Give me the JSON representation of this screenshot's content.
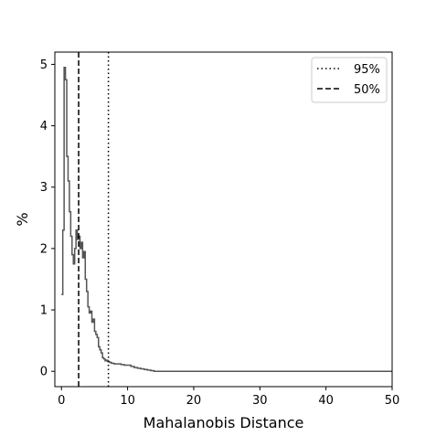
{
  "chart_data": {
    "type": "line",
    "title": "",
    "xlabel": "Mahalanobis Distance",
    "ylabel": "%",
    "xlim": [
      -1,
      50
    ],
    "ylim": [
      -0.25,
      5.2
    ],
    "x_ticks": [
      0,
      10,
      20,
      30,
      40,
      50
    ],
    "y_ticks": [
      0,
      1,
      2,
      3,
      4,
      5
    ],
    "grid": false,
    "legend_position": "top-right",
    "series": [
      {
        "style": "step",
        "color": "#555555",
        "x": [
          0.0,
          0.2,
          0.4,
          0.6,
          0.8,
          1.0,
          1.2,
          1.4,
          1.6,
          1.8,
          2.0,
          2.2,
          2.4,
          2.6,
          2.8,
          3.0,
          3.2,
          3.4,
          3.6,
          3.8,
          4.0,
          4.2,
          4.4,
          4.6,
          4.8,
          5.0,
          5.2,
          5.4,
          5.6,
          5.8,
          6.0,
          6.2,
          6.4,
          6.6,
          6.8,
          7.0,
          7.2,
          7.4,
          7.6,
          7.8,
          8.0,
          8.5,
          9.0,
          9.5,
          10.0,
          10.5,
          11.0,
          11.5,
          12.0,
          12.5,
          13.0,
          13.5,
          14.0,
          15.0,
          20.0,
          30.0,
          40.0,
          50.0
        ],
        "y": [
          1.25,
          2.3,
          4.95,
          4.75,
          3.5,
          3.1,
          2.6,
          2.2,
          1.9,
          1.75,
          2.0,
          2.3,
          2.15,
          2.2,
          2.0,
          2.1,
          1.85,
          1.95,
          1.5,
          1.3,
          1.05,
          0.95,
          0.98,
          0.8,
          0.85,
          0.65,
          0.6,
          0.55,
          0.4,
          0.35,
          0.3,
          0.22,
          0.2,
          0.17,
          0.18,
          0.16,
          0.15,
          0.14,
          0.13,
          0.13,
          0.12,
          0.12,
          0.11,
          0.1,
          0.1,
          0.08,
          0.06,
          0.05,
          0.04,
          0.03,
          0.02,
          0.01,
          0.0,
          0.0,
          0.0,
          0.0,
          0.0,
          0.0
        ]
      }
    ],
    "vlines": [
      {
        "x": 7.1,
        "style": "dotted",
        "label": "95%"
      },
      {
        "x": 2.6,
        "style": "dashed",
        "label": "50%"
      }
    ],
    "legend": [
      {
        "label": "95%",
        "style": "dotted"
      },
      {
        "label": "50%",
        "style": "dashed"
      }
    ]
  }
}
